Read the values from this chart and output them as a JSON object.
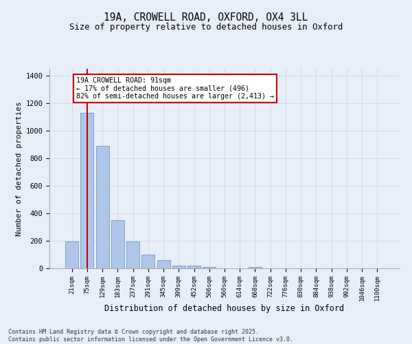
{
  "title_line1": "19A, CROWELL ROAD, OXFORD, OX4 3LL",
  "title_line2": "Size of property relative to detached houses in Oxford",
  "xlabel": "Distribution of detached houses by size in Oxford",
  "ylabel": "Number of detached properties",
  "categories": [
    "21sqm",
    "75sqm",
    "129sqm",
    "183sqm",
    "237sqm",
    "291sqm",
    "345sqm",
    "399sqm",
    "452sqm",
    "506sqm",
    "560sqm",
    "614sqm",
    "668sqm",
    "722sqm",
    "776sqm",
    "830sqm",
    "884sqm",
    "938sqm",
    "992sqm",
    "1046sqm",
    "1100sqm"
  ],
  "values": [
    195,
    1130,
    890,
    350,
    195,
    100,
    60,
    22,
    18,
    12,
    0,
    0,
    10,
    0,
    0,
    0,
    0,
    0,
    0,
    0,
    0
  ],
  "bar_color": "#aec6e8",
  "bar_edge_color": "#5a8fc0",
  "vline_x": 1,
  "vline_color": "#cc0000",
  "annotation_title": "19A CROWELL ROAD: 91sqm",
  "annotation_line2": "← 17% of detached houses are smaller (496)",
  "annotation_line3": "82% of semi-detached houses are larger (2,413) →",
  "annotation_box_color": "#cc0000",
  "annotation_bg": "#ffffff",
  "ylim": [
    0,
    1450
  ],
  "yticks": [
    0,
    200,
    400,
    600,
    800,
    1000,
    1200,
    1400
  ],
  "grid_color": "#d0d8e8",
  "bg_color": "#e8eef8",
  "footnote1": "Contains HM Land Registry data © Crown copyright and database right 2025.",
  "footnote2": "Contains public sector information licensed under the Open Government Licence v3.0."
}
